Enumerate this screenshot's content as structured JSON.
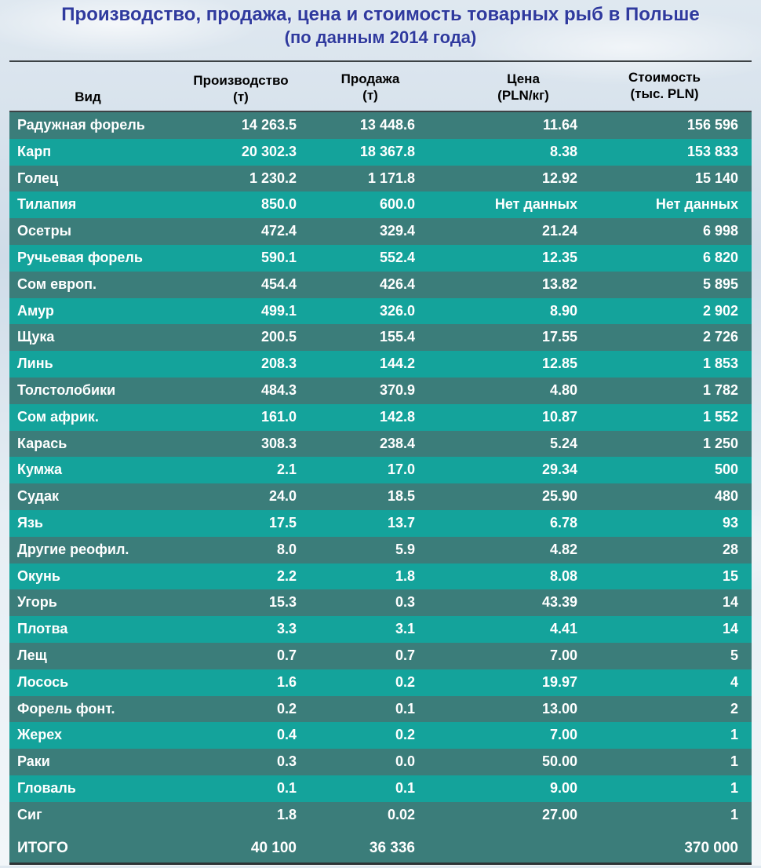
{
  "title": "Производство, продажа, цена и стоимость товарных рыб в Польше",
  "subtitle": "(по данным 2014 года)",
  "colors": {
    "row_dark": "#3b7d7a",
    "row_light": "#14a39b",
    "title": "#2f3a9e"
  },
  "columns": [
    {
      "line1": "Вид",
      "line2": ""
    },
    {
      "line1": "Производство",
      "line2": "(т)"
    },
    {
      "line1": "Продажа",
      "line2": "(т)"
    },
    {
      "line1": "Цена",
      "line2": "(PLN/кг)"
    },
    {
      "line1": "Стоимость",
      "line2": "(тыс. PLN)"
    }
  ],
  "rows": [
    {
      "name": "Радужная форель",
      "production": "14 263.5",
      "sales": "13 448.6",
      "price": "11.64",
      "value": "156 596"
    },
    {
      "name": "Карп",
      "production": "20 302.3",
      "sales": "18 367.8",
      "price": "8.38",
      "value": "153 833"
    },
    {
      "name": "Голец",
      "production": "1 230.2",
      "sales": "1 171.8",
      "price": "12.92",
      "value": "15 140"
    },
    {
      "name": "Тилапия",
      "production": "850.0",
      "sales": "600.0",
      "price": "Нет данных",
      "value": "Нет данных"
    },
    {
      "name": "Осетры",
      "production": "472.4",
      "sales": "329.4",
      "price": "21.24",
      "value": "6 998"
    },
    {
      "name": "Ручьевая форель",
      "production": "590.1",
      "sales": "552.4",
      "price": "12.35",
      "value": "6 820"
    },
    {
      "name": "Сом европ.",
      "production": "454.4",
      "sales": "426.4",
      "price": "13.82",
      "value": "5 895"
    },
    {
      "name": "Амур",
      "production": "499.1",
      "sales": "326.0",
      "price": "8.90",
      "value": "2 902"
    },
    {
      "name": "Щука",
      "production": "200.5",
      "sales": "155.4",
      "price": "17.55",
      "value": "2 726"
    },
    {
      "name": "Линь",
      "production": "208.3",
      "sales": "144.2",
      "price": "12.85",
      "value": "1 853"
    },
    {
      "name": "Толстолобики",
      "production": "484.3",
      "sales": "370.9",
      "price": "4.80",
      "value": "1 782"
    },
    {
      "name": "Сом африк.",
      "production": "161.0",
      "sales": "142.8",
      "price": "10.87",
      "value": "1 552"
    },
    {
      "name": "Карась",
      "production": "308.3",
      "sales": "238.4",
      "price": "5.24",
      "value": "1 250"
    },
    {
      "name": "Кумжа",
      "production": "2.1",
      "sales": "17.0",
      "price": "29.34",
      "value": "500"
    },
    {
      "name": "Судак",
      "production": "24.0",
      "sales": "18.5",
      "price": "25.90",
      "value": "480"
    },
    {
      "name": "Язь",
      "production": "17.5",
      "sales": "13.7",
      "price": "6.78",
      "value": "93"
    },
    {
      "name": "Другие реофил.",
      "production": "8.0",
      "sales": "5.9",
      "price": "4.82",
      "value": "28"
    },
    {
      "name": "Окунь",
      "production": "2.2",
      "sales": "1.8",
      "price": "8.08",
      "value": "15"
    },
    {
      "name": "Угорь",
      "production": "15.3",
      "sales": "0.3",
      "price": "43.39",
      "value": "14"
    },
    {
      "name": "Плотва",
      "production": "3.3",
      "sales": "3.1",
      "price": "4.41",
      "value": "14"
    },
    {
      "name": "Лещ",
      "production": "0.7",
      "sales": "0.7",
      "price": "7.00",
      "value": "5"
    },
    {
      "name": "Лосось",
      "production": "1.6",
      "sales": "0.2",
      "price": "19.97",
      "value": "4"
    },
    {
      "name": "Форель фонт.",
      "production": "0.2",
      "sales": "0.1",
      "price": "13.00",
      "value": "2"
    },
    {
      "name": "Жерех",
      "production": "0.4",
      "sales": "0.2",
      "price": "7.00",
      "value": "1"
    },
    {
      "name": "Раки",
      "production": "0.3",
      "sales": "0.0",
      "price": "50.00",
      "value": "1"
    },
    {
      "name": "Гловаль",
      "production": "0.1",
      "sales": "0.1",
      "price": "9.00",
      "value": "1"
    },
    {
      "name": "Сиг",
      "production": "1.8",
      "sales": "0.02",
      "price": "27.00",
      "value": "1"
    }
  ],
  "total": {
    "name": "ИТОГО",
    "production": "40 100",
    "sales": "36 336",
    "price": "",
    "value": "370 000"
  }
}
